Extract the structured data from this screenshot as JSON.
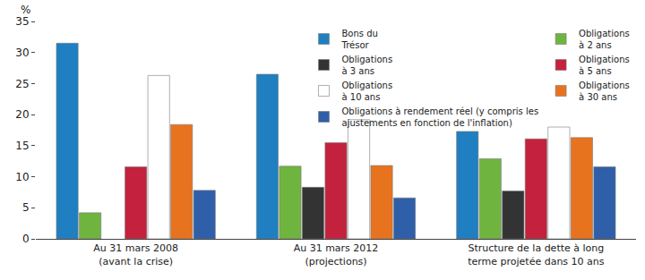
{
  "chart_data": {
    "type": "bar",
    "y_label": "%",
    "categories": [
      "Au 31 mars 2008 (avant la crise)",
      "Au 31 mars 2012 (projections)",
      "Structure de la dette à long terme projetée dans 10 ans"
    ],
    "series": [
      {
        "name": "Bons du Trésor",
        "color": "#1f7fc0",
        "values": [
          31.5,
          26.5,
          17.3
        ]
      },
      {
        "name": "Obligations à 2 ans",
        "color": "#6fb43f",
        "values": [
          4.2,
          11.7,
          12.9
        ]
      },
      {
        "name": "Obligations à 3 ans",
        "color": "#333333",
        "values": [
          null,
          8.3,
          7.7
        ]
      },
      {
        "name": "Obligations à 5 ans",
        "color": "#c4213f",
        "values": [
          11.6,
          15.5,
          16.1
        ]
      },
      {
        "name": "Obligations à 10 ans",
        "color": "#ffffff",
        "values": [
          26.3,
          19.2,
          18.0
        ]
      },
      {
        "name": "Obligations à 30 ans",
        "color": "#e8731f",
        "values": [
          18.4,
          11.8,
          16.3
        ]
      },
      {
        "name": "Obligations à rendement réel (y compris les ajustements en fonction de l'inflation)",
        "color": "#2f5fa8",
        "values": [
          7.8,
          6.6,
          11.6
        ]
      }
    ],
    "ylim": [
      0,
      35
    ],
    "yticks": [
      0,
      5,
      10,
      15,
      20,
      25,
      30,
      35
    ],
    "grid": false,
    "legend": "top-right"
  }
}
